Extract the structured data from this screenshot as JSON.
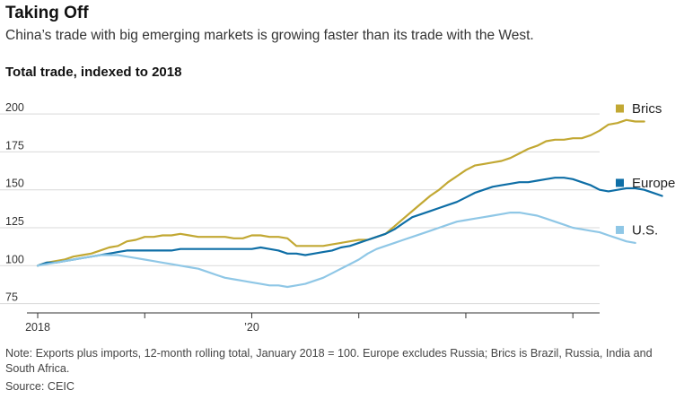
{
  "header": {
    "title": "Taking Off",
    "subtitle": "China’s trade with big emerging markets is growing faster than its trade with the West."
  },
  "footer": {
    "note": "Note: Exports plus imports, 12-month rolling total, January 2018 = 100. Europe excludes Russia; Brics is Brazil, Russia, India and South Africa.",
    "source": "Source: CEIC"
  },
  "chart_data": {
    "type": "line",
    "title": "Total trade, indexed to 2018",
    "xlabel": "",
    "ylabel": "",
    "yticks": [
      75,
      100,
      125,
      150,
      175,
      200
    ],
    "ylim": [
      73,
      203
    ],
    "xlim": [
      "2018-01",
      "2023-04"
    ],
    "xticks": [
      {
        "at": "2018-01",
        "label": "2018"
      },
      {
        "at": "2019-01",
        "label": ""
      },
      {
        "at": "2020-01",
        "label": "’20"
      },
      {
        "at": "2021-01",
        "label": ""
      },
      {
        "at": "2022-01",
        "label": ""
      },
      {
        "at": "2023-01",
        "label": ""
      }
    ],
    "grid": true,
    "legend": "right, at line ends",
    "start": "2018-01",
    "frequency": "monthly",
    "series": [
      {
        "name": "Brics",
        "color": "#c2a833",
        "values": [
          100,
          102,
          103,
          104,
          106,
          107,
          108,
          110,
          112,
          113,
          116,
          117,
          119,
          119,
          120,
          120,
          121,
          120,
          119,
          119,
          119,
          119,
          118,
          118,
          120,
          120,
          119,
          119,
          118,
          113,
          113,
          113,
          113,
          114,
          115,
          116,
          117,
          117,
          119,
          121,
          126,
          131,
          136,
          141,
          146,
          150,
          155,
          159,
          163,
          166,
          167,
          168,
          169,
          171,
          174,
          177,
          179,
          182,
          183,
          183,
          184,
          184,
          186,
          189,
          193,
          194,
          196,
          195,
          195
        ]
      },
      {
        "name": "Europe",
        "color": "#0e6ea6",
        "values": [
          100,
          102,
          102,
          103,
          104,
          105,
          106,
          107,
          108,
          109,
          110,
          110,
          110,
          110,
          110,
          110,
          111,
          111,
          111,
          111,
          111,
          111,
          111,
          111,
          111,
          112,
          111,
          110,
          108,
          108,
          107,
          108,
          109,
          110,
          112,
          113,
          115,
          117,
          119,
          121,
          124,
          128,
          132,
          134,
          136,
          138,
          140,
          142,
          145,
          148,
          150,
          152,
          153,
          154,
          155,
          155,
          156,
          157,
          158,
          158,
          157,
          155,
          153,
          150,
          149,
          150,
          151,
          151,
          150,
          148,
          146
        ]
      },
      {
        "name": "U.S.",
        "color": "#8fc7e6",
        "values": [
          100,
          101,
          102,
          103,
          104,
          105,
          106,
          107,
          107,
          107,
          106,
          105,
          104,
          103,
          102,
          101,
          100,
          99,
          98,
          96,
          94,
          92,
          91,
          90,
          89,
          88,
          87,
          87,
          86,
          87,
          88,
          90,
          92,
          95,
          98,
          101,
          104,
          108,
          111,
          113,
          115,
          117,
          119,
          121,
          123,
          125,
          127,
          129,
          130,
          131,
          132,
          133,
          134,
          135,
          135,
          134,
          133,
          131,
          129,
          127,
          125,
          124,
          123,
          122,
          120,
          118,
          116,
          115
        ]
      }
    ]
  }
}
